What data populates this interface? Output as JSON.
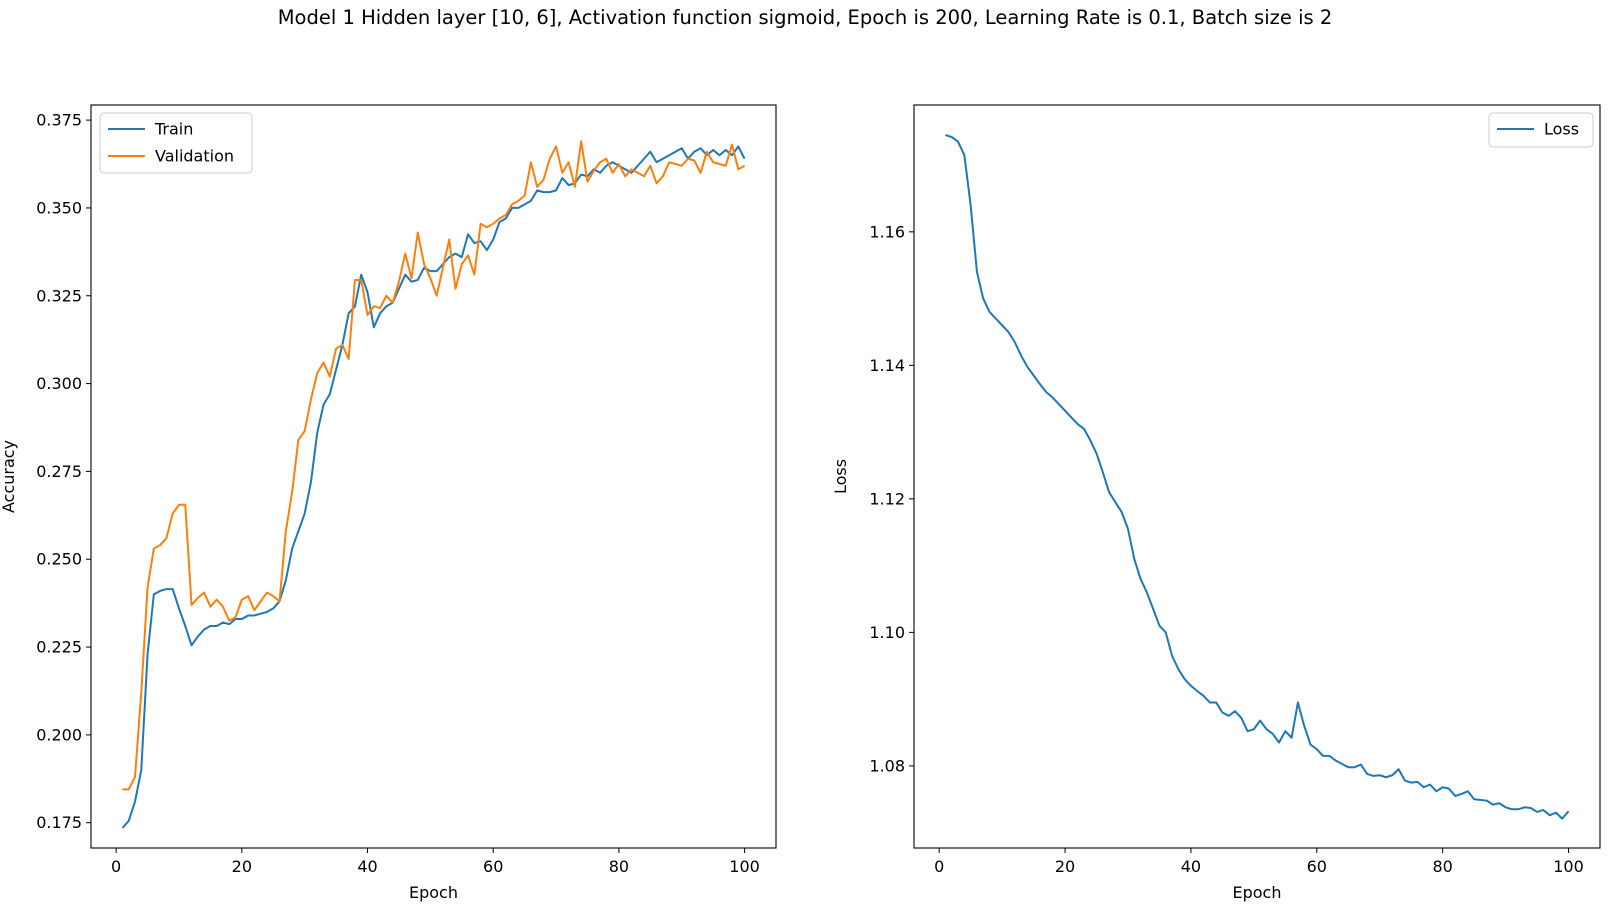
{
  "figure_title": "Model 1 Hidden layer [10, 6], Activation function sigmoid, Epoch is 200, Learning Rate is 0.1, Batch size is 2",
  "chart_data": [
    {
      "type": "line",
      "xlabel": "Epoch",
      "ylabel": "Accuracy",
      "xlim": [
        -4,
        105
      ],
      "ylim": [
        0.1678,
        0.3793
      ],
      "xticks": [
        0,
        20,
        40,
        60,
        80,
        100
      ],
      "yticks": [
        0.175,
        0.2,
        0.225,
        0.25,
        0.275,
        0.3,
        0.325,
        0.35,
        0.375
      ],
      "ytick_labels": [
        "0.175",
        "0.200",
        "0.225",
        "0.250",
        "0.275",
        "0.300",
        "0.325",
        "0.350",
        "0.375"
      ],
      "grid": false,
      "legend_position": "upper-left",
      "series": [
        {
          "name": "Train",
          "color": "#1f77b4",
          "x": [
            1,
            2,
            3,
            4,
            5,
            6,
            7,
            8,
            9,
            10,
            11,
            12,
            13,
            14,
            15,
            16,
            17,
            18,
            19,
            20,
            21,
            22,
            23,
            24,
            25,
            26,
            27,
            28,
            29,
            30,
            31,
            32,
            33,
            34,
            35,
            36,
            37,
            38,
            39,
            40,
            41,
            42,
            43,
            44,
            45,
            46,
            47,
            48,
            49,
            50,
            51,
            52,
            53,
            54,
            55,
            56,
            57,
            58,
            59,
            60,
            61,
            62,
            63,
            64,
            65,
            66,
            67,
            68,
            69,
            70,
            71,
            72,
            73,
            74,
            75,
            76,
            77,
            78,
            79,
            80,
            81,
            82,
            83,
            84,
            85,
            86,
            87,
            88,
            89,
            90,
            91,
            92,
            93,
            94,
            95,
            96,
            97,
            98,
            99,
            100
          ],
          "y": [
            0.1735,
            0.1755,
            0.181,
            0.19,
            0.223,
            0.24,
            0.241,
            0.2415,
            0.2415,
            0.236,
            0.231,
            0.2255,
            0.228,
            0.23,
            0.231,
            0.231,
            0.232,
            0.2315,
            0.233,
            0.233,
            0.234,
            0.234,
            0.2345,
            0.235,
            0.236,
            0.238,
            0.244,
            0.253,
            0.258,
            0.263,
            0.272,
            0.286,
            0.294,
            0.297,
            0.304,
            0.311,
            0.32,
            0.322,
            0.331,
            0.326,
            0.316,
            0.32,
            0.322,
            0.323,
            0.327,
            0.331,
            0.329,
            0.3295,
            0.333,
            0.332,
            0.332,
            0.334,
            0.336,
            0.337,
            0.336,
            0.3425,
            0.34,
            0.3405,
            0.338,
            0.341,
            0.346,
            0.347,
            0.35,
            0.35,
            0.351,
            0.352,
            0.355,
            0.3545,
            0.3545,
            0.355,
            0.3585,
            0.3565,
            0.357,
            0.3595,
            0.359,
            0.361,
            0.36,
            0.362,
            0.363,
            0.362,
            0.361,
            0.36,
            0.362,
            0.364,
            0.366,
            0.363,
            0.364,
            0.365,
            0.366,
            0.367,
            0.364,
            0.366,
            0.367,
            0.365,
            0.3665,
            0.365,
            0.3665,
            0.365,
            0.3675,
            0.364
          ]
        },
        {
          "name": "Validation",
          "color": "#ff7f0e",
          "x": [
            1,
            2,
            3,
            4,
            5,
            6,
            7,
            8,
            9,
            10,
            11,
            12,
            13,
            14,
            15,
            16,
            17,
            18,
            19,
            20,
            21,
            22,
            23,
            24,
            25,
            26,
            27,
            28,
            29,
            30,
            31,
            32,
            33,
            34,
            35,
            36,
            37,
            38,
            39,
            40,
            41,
            42,
            43,
            44,
            45,
            46,
            47,
            48,
            49,
            50,
            51,
            52,
            53,
            54,
            55,
            56,
            57,
            58,
            59,
            60,
            61,
            62,
            63,
            64,
            65,
            66,
            67,
            68,
            69,
            70,
            71,
            72,
            73,
            74,
            75,
            76,
            77,
            78,
            79,
            80,
            81,
            82,
            83,
            84,
            85,
            86,
            87,
            88,
            89,
            90,
            91,
            92,
            93,
            94,
            95,
            96,
            97,
            98,
            99,
            100
          ],
          "y": [
            0.1845,
            0.1845,
            0.188,
            0.212,
            0.242,
            0.253,
            0.254,
            0.256,
            0.263,
            0.2655,
            0.2655,
            0.237,
            0.239,
            0.2405,
            0.2365,
            0.2385,
            0.2365,
            0.2325,
            0.2335,
            0.2385,
            0.2395,
            0.2355,
            0.238,
            0.2405,
            0.2395,
            0.238,
            0.258,
            0.269,
            0.284,
            0.2865,
            0.2955,
            0.303,
            0.306,
            0.302,
            0.31,
            0.311,
            0.307,
            0.3295,
            0.3295,
            0.3195,
            0.322,
            0.3215,
            0.325,
            0.323,
            0.329,
            0.337,
            0.33,
            0.343,
            0.334,
            0.33,
            0.325,
            0.333,
            0.341,
            0.327,
            0.334,
            0.3365,
            0.331,
            0.3455,
            0.3445,
            0.3455,
            0.347,
            0.348,
            0.351,
            0.352,
            0.3535,
            0.363,
            0.356,
            0.358,
            0.364,
            0.3675,
            0.36,
            0.363,
            0.356,
            0.369,
            0.3575,
            0.3605,
            0.363,
            0.364,
            0.36,
            0.3625,
            0.359,
            0.361,
            0.36,
            0.359,
            0.362,
            0.357,
            0.359,
            0.363,
            0.3625,
            0.362,
            0.364,
            0.3635,
            0.36,
            0.366,
            0.363,
            0.3625,
            0.362,
            0.368,
            0.361,
            0.362
          ]
        }
      ]
    },
    {
      "type": "line",
      "xlabel": "Epoch",
      "ylabel": "Loss",
      "xlim": [
        -4,
        105
      ],
      "ylim": [
        1.0677,
        1.179
      ],
      "xticks": [
        0,
        20,
        40,
        60,
        80,
        100
      ],
      "yticks": [
        1.08,
        1.1,
        1.12,
        1.14,
        1.16
      ],
      "ytick_labels": [
        "1.08",
        "1.10",
        "1.12",
        "1.14",
        "1.16"
      ],
      "grid": false,
      "legend_position": "upper-right",
      "series": [
        {
          "name": "Loss",
          "color": "#1f77b4",
          "x": [
            1,
            2,
            3,
            4,
            5,
            6,
            7,
            8,
            9,
            10,
            11,
            12,
            13,
            14,
            15,
            16,
            17,
            18,
            19,
            20,
            21,
            22,
            23,
            24,
            25,
            26,
            27,
            28,
            29,
            30,
            31,
            32,
            33,
            34,
            35,
            36,
            37,
            38,
            39,
            40,
            41,
            42,
            43,
            44,
            45,
            46,
            47,
            48,
            49,
            50,
            51,
            52,
            53,
            54,
            55,
            56,
            57,
            58,
            59,
            60,
            61,
            62,
            63,
            64,
            65,
            66,
            67,
            68,
            69,
            70,
            71,
            72,
            73,
            74,
            75,
            76,
            77,
            78,
            79,
            80,
            81,
            82,
            83,
            84,
            85,
            86,
            87,
            88,
            89,
            90,
            91,
            92,
            93,
            94,
            95,
            96,
            97,
            98,
            99,
            100
          ],
          "y": [
            1.1745,
            1.1742,
            1.1735,
            1.1715,
            1.164,
            1.154,
            1.15,
            1.148,
            1.147,
            1.146,
            1.145,
            1.1435,
            1.1415,
            1.1398,
            1.1385,
            1.1372,
            1.136,
            1.1352,
            1.1342,
            1.1332,
            1.1322,
            1.1312,
            1.1305,
            1.1288,
            1.1268,
            1.124,
            1.121,
            1.1195,
            1.118,
            1.1155,
            1.111,
            1.108,
            1.106,
            1.1035,
            1.101,
            1.1,
            1.0965,
            1.0945,
            1.093,
            1.092,
            1.0912,
            1.0905,
            1.0895,
            1.0895,
            1.088,
            1.0875,
            1.0882,
            1.0872,
            1.0852,
            1.0855,
            1.0868,
            1.0855,
            1.0848,
            1.0835,
            1.0852,
            1.0842,
            1.0895,
            1.086,
            1.0832,
            1.0825,
            1.0815,
            1.0815,
            1.0808,
            1.0803,
            1.0798,
            1.0798,
            1.0802,
            1.0788,
            1.0785,
            1.0786,
            1.0783,
            1.0786,
            1.0795,
            1.0778,
            1.0775,
            1.0776,
            1.0768,
            1.0772,
            1.0762,
            1.0768,
            1.0766,
            1.0755,
            1.0758,
            1.0762,
            1.075,
            1.0749,
            1.0748,
            1.0742,
            1.0744,
            1.0738,
            1.0735,
            1.0735,
            1.0738,
            1.0737,
            1.0731,
            1.0734,
            1.0726,
            1.073,
            1.0721,
            1.0732
          ]
        }
      ]
    }
  ]
}
